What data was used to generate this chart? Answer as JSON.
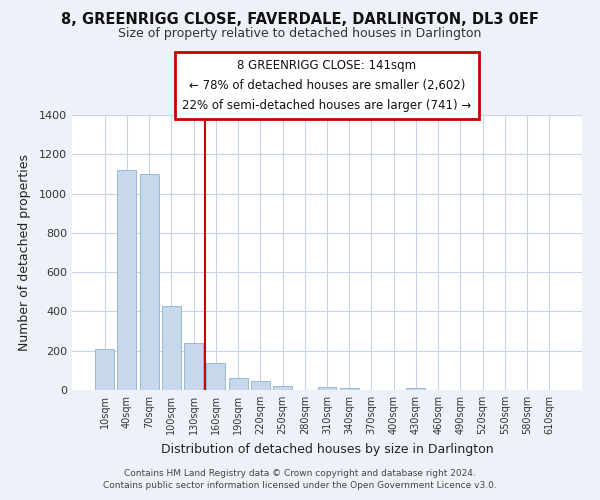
{
  "title": "8, GREENRIGG CLOSE, FAVERDALE, DARLINGTON, DL3 0EF",
  "subtitle": "Size of property relative to detached houses in Darlington",
  "xlabel": "Distribution of detached houses by size in Darlington",
  "ylabel": "Number of detached properties",
  "bar_color": "#c8d8ec",
  "bar_edge_color": "#8fb0d0",
  "bin_labels": [
    "10sqm",
    "40sqm",
    "70sqm",
    "100sqm",
    "130sqm",
    "160sqm",
    "190sqm",
    "220sqm",
    "250sqm",
    "280sqm",
    "310sqm",
    "340sqm",
    "370sqm",
    "400sqm",
    "430sqm",
    "460sqm",
    "490sqm",
    "520sqm",
    "550sqm",
    "580sqm",
    "610sqm"
  ],
  "bar_values": [
    210,
    1120,
    1100,
    430,
    240,
    140,
    60,
    45,
    20,
    0,
    15,
    10,
    0,
    0,
    10,
    0,
    0,
    0,
    0,
    0,
    0
  ],
  "ylim": [
    0,
    1400
  ],
  "yticks": [
    0,
    200,
    400,
    600,
    800,
    1000,
    1200,
    1400
  ],
  "vline_x": 4.5,
  "vline_color": "#cc0000",
  "annotation_title": "8 GREENRIGG CLOSE: 141sqm",
  "annotation_line1": "← 78% of detached houses are smaller (2,602)",
  "annotation_line2": "22% of semi-detached houses are larger (741) →",
  "annotation_box_color": "#cc0000",
  "footer1": "Contains HM Land Registry data © Crown copyright and database right 2024.",
  "footer2": "Contains public sector information licensed under the Open Government Licence v3.0.",
  "background_color": "#eef2f8",
  "plot_bg_color": "#ffffff",
  "grid_color": "#c8d4e4"
}
